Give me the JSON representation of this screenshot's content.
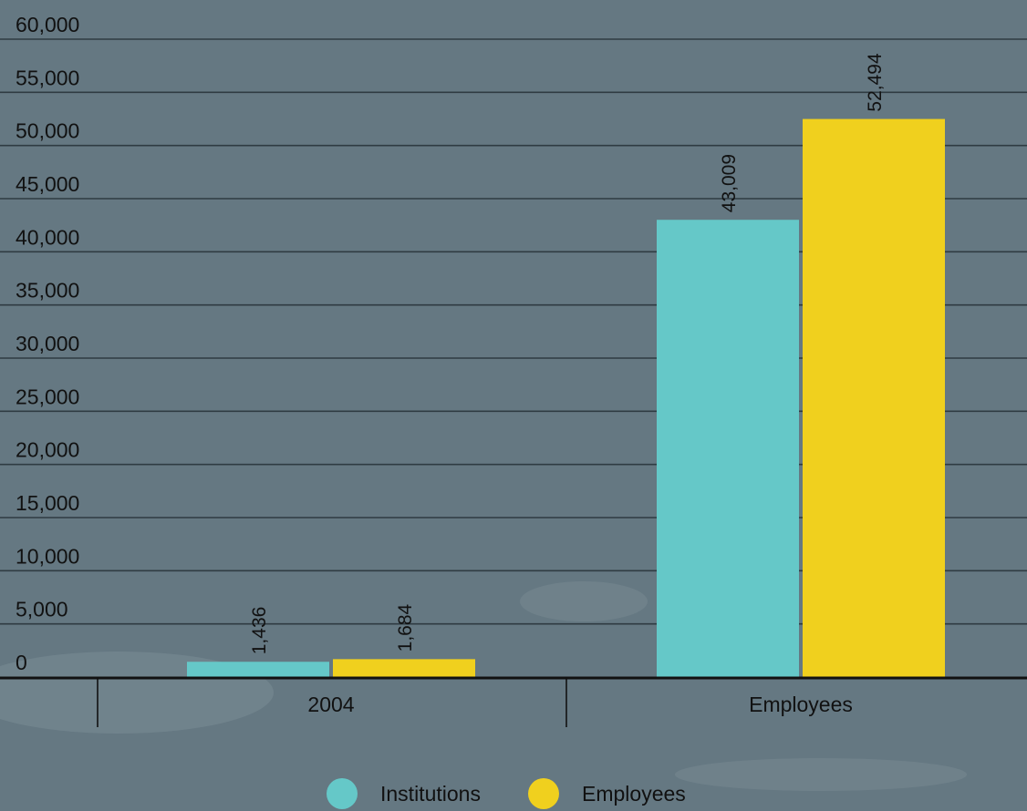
{
  "chart_data": {
    "type": "bar",
    "categories": [
      "2004",
      "Employees"
    ],
    "series": [
      {
        "name": "Institutions",
        "color": "#65c8c8",
        "values": [
          1436,
          43009
        ],
        "labels": [
          "1,436",
          "43,009"
        ]
      },
      {
        "name": "Employees",
        "color": "#f0d01e",
        "values": [
          1684,
          52494
        ],
        "labels": [
          "1,684",
          "52,494"
        ]
      }
    ],
    "ylim": [
      0,
      60000
    ],
    "yticks": [
      0,
      5000,
      10000,
      15000,
      20000,
      25000,
      30000,
      35000,
      40000,
      45000,
      50000,
      55000,
      60000
    ],
    "ytick_labels": [
      "0",
      "5,000",
      "10,000",
      "15,000",
      "20,000",
      "25,000",
      "30,000",
      "35,000",
      "40,000",
      "45,000",
      "50,000",
      "55,000",
      "60,000"
    ],
    "grid": true,
    "legend_position": "bottom-center",
    "background_color": "#657882",
    "grid_color": "#2f3b42",
    "axis_color": "#111111"
  }
}
